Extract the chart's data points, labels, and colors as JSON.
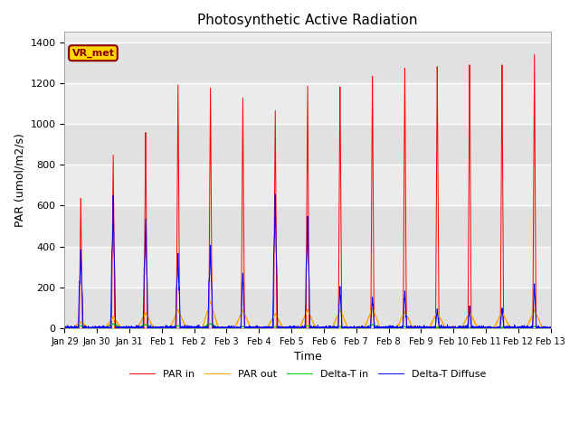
{
  "title": "Photosynthetic Active Radiation",
  "xlabel": "Time",
  "ylabel": "PAR (umol/m2/s)",
  "ylim": [
    0,
    1450
  ],
  "background_color": "#ebebeb",
  "label_box_text": "VR_met",
  "legend": [
    "PAR in",
    "PAR out",
    "Delta-T in",
    "Delta-T Diffuse"
  ],
  "colors": {
    "par_in": "#ff0000",
    "par_out": "#ffa500",
    "delta_t_in": "#00cc00",
    "delta_t_diffuse": "#0000ff"
  },
  "x_tick_labels": [
    "Jan 29",
    "Jan 30",
    "Jan 31",
    "Feb 1",
    "Feb 2",
    "Feb 3",
    "Feb 4",
    "Feb 5",
    "Feb 6",
    "Feb 7",
    "Feb 8",
    "Feb 9",
    "Feb 10",
    "Feb 11",
    "Feb 12",
    "Feb 13"
  ],
  "day_peaks_par_in": [
    630,
    850,
    970,
    1210,
    1200,
    1160,
    1100,
    1230,
    1220,
    1260,
    1300,
    1300,
    1300,
    1300,
    1340
  ],
  "day_peaks_par_out": [
    30,
    55,
    75,
    90,
    130,
    90,
    70,
    90,
    90,
    100,
    80,
    80,
    80,
    80,
    90
  ],
  "day_peaks_delta_t_in": [
    12,
    22,
    18,
    12,
    22,
    8,
    8,
    12,
    8,
    18,
    8,
    4,
    4,
    4,
    8
  ],
  "day_peaks_delta_t_diffuse": [
    380,
    650,
    540,
    370,
    410,
    280,
    680,
    560,
    210,
    155,
    185,
    90,
    100,
    100,
    215
  ]
}
